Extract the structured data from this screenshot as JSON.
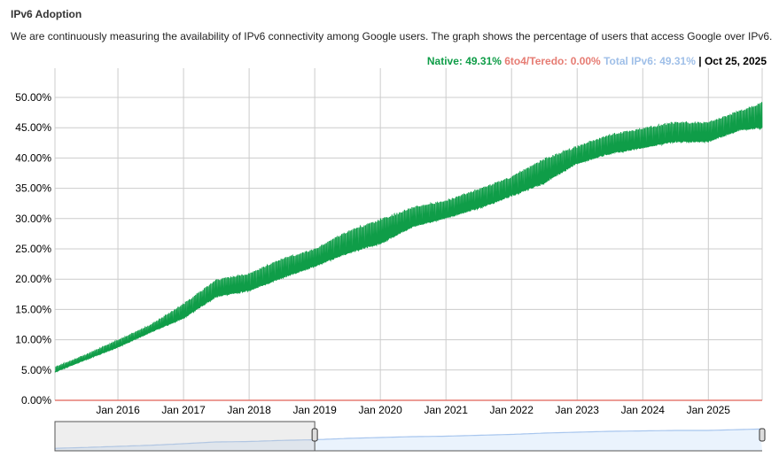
{
  "title": "IPv6 Adoption",
  "description": "We are continuously measuring the availability of IPv6 connectivity among Google users. The graph shows the percentage of users that access Google over IPv6.",
  "legend": {
    "native": "Native: 49.31%",
    "teredo": "6to4/Teredo: 0.00%",
    "total": "Total IPv6: 49.31%",
    "date": "| Oct 25, 2025"
  },
  "colors": {
    "native": "#0f9d48",
    "teredo": "#e67c73",
    "total": "#9fbfe8"
  },
  "chart_data": {
    "type": "area",
    "title": "IPv6 Adoption",
    "ylabel": "",
    "xlabel": "",
    "ylim": [
      0,
      50
    ],
    "xlim": [
      2015.04,
      2025.82
    ],
    "yticks": [
      "0.00%",
      "5.00%",
      "10.00%",
      "15.00%",
      "20.00%",
      "25.00%",
      "30.00%",
      "35.00%",
      "40.00%",
      "45.00%",
      "50.00%"
    ],
    "xticks": [
      "Jan 2016",
      "Jan 2017",
      "Jan 2018",
      "Jan 2019",
      "Jan 2020",
      "Jan 2021",
      "Jan 2022",
      "Jan 2023",
      "Jan 2024",
      "Jan 2025"
    ],
    "series": [
      {
        "name": "Native",
        "x": [
          2015.04,
          2015.5,
          2016.0,
          2016.5,
          2017.0,
          2017.5,
          2018.0,
          2018.5,
          2019.0,
          2019.5,
          2020.0,
          2020.5,
          2021.0,
          2021.5,
          2022.0,
          2022.5,
          2023.0,
          2023.5,
          2024.0,
          2024.5,
          2025.0,
          2025.5,
          2025.82
        ],
        "low": [
          4.5,
          6.5,
          8.5,
          11,
          13,
          16.5,
          17.5,
          19.5,
          21.5,
          23.5,
          25,
          28,
          29.5,
          31,
          33,
          35,
          38.5,
          40,
          41,
          42,
          42,
          44,
          44
        ],
        "high": [
          5.5,
          7.5,
          10,
          12.5,
          16,
          20,
          21,
          23.5,
          25,
          28,
          30,
          32,
          33,
          35,
          37,
          40,
          42,
          44,
          45,
          46,
          46,
          48,
          49.3
        ]
      },
      {
        "name": "6to4/Teredo",
        "value": 0.0
      }
    ]
  }
}
